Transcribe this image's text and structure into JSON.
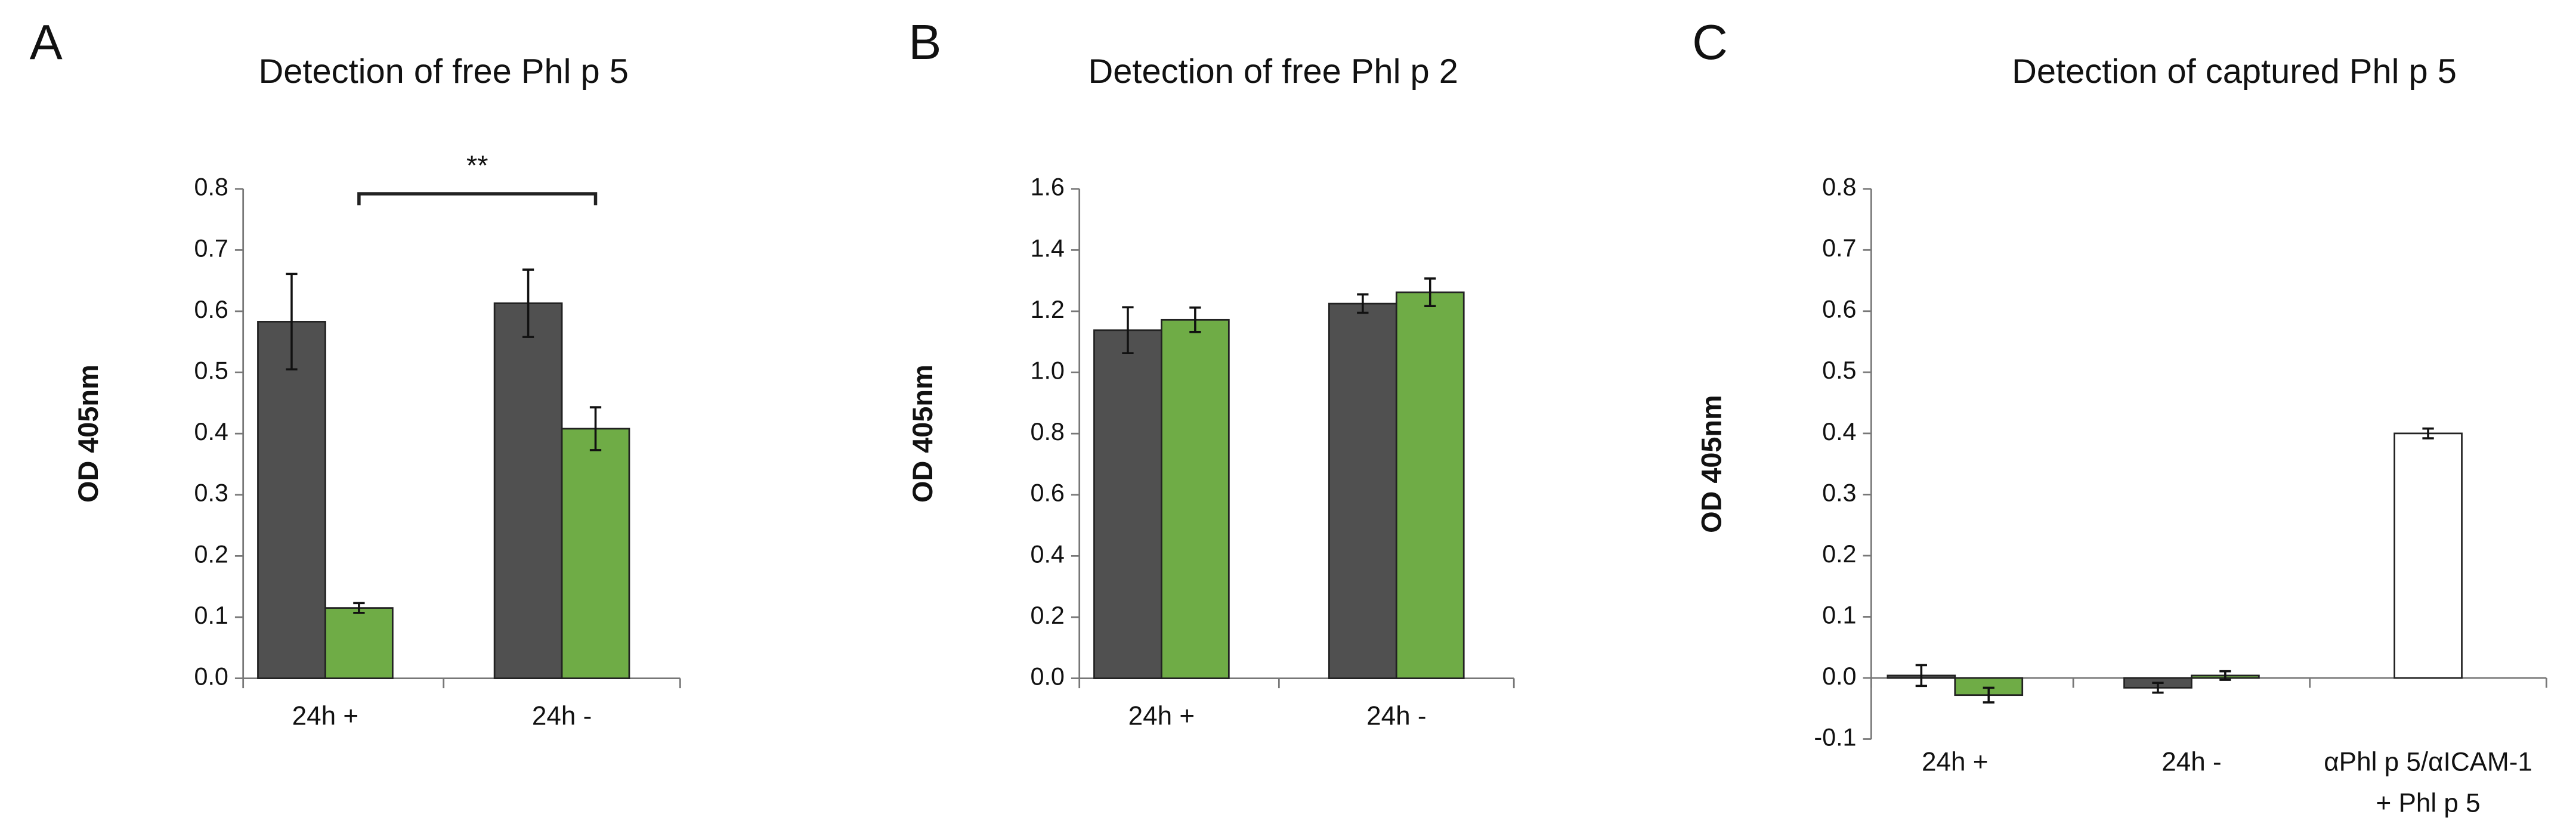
{
  "chart_data": [
    {
      "type": "bar",
      "panel": "A",
      "title": "Detection of free Phl p 5",
      "y_label": "OD 405nm",
      "categories": [
        "24h +",
        "24h -"
      ],
      "series": [
        {
          "color": "#505050",
          "values": [
            0.583,
            0.613
          ],
          "errors": [
            0.078,
            0.055
          ]
        },
        {
          "color": "#6fac46",
          "values": [
            0.115,
            0.408
          ],
          "errors": [
            0.008,
            0.035
          ]
        }
      ],
      "ylim": [
        0,
        0.8
      ],
      "yticks": [
        {
          "value": 0,
          "label": "0.0"
        },
        0.1,
        0.2,
        0.3,
        0.4,
        0.5,
        0.6,
        0.7,
        0.8
      ],
      "annotation": "**"
    },
    {
      "type": "bar",
      "panel": "B",
      "title": "Detection of free Phl p 2",
      "y_label": "OD 405nm",
      "categories": [
        "24h +",
        "24h -"
      ],
      "series": [
        {
          "color": "#505050",
          "values": [
            1.138,
            1.225
          ],
          "errors": [
            0.075,
            0.03
          ]
        },
        {
          "color": "#6fac46",
          "values": [
            1.172,
            1.262
          ],
          "errors": [
            0.04,
            0.045
          ]
        }
      ],
      "ylim": [
        0,
        1.6
      ],
      "yticks": [
        {
          "value": 0,
          "label": "0.0"
        },
        0.2,
        0.4,
        0.6,
        0.8,
        {
          "value": 1,
          "label": "1.0"
        },
        1.2,
        1.4,
        1.6
      ]
    },
    {
      "type": "bar",
      "panel": "C",
      "title": "Detection of captured Phl p 5",
      "y_label": "OD 405nm",
      "categories": [
        "24h +",
        "24h -",
        [
          "αPhl p 5/αICAM-1",
          "+ Phl p 5"
        ]
      ],
      "series": [
        {
          "color": "#505050",
          "values": [
            0.004,
            -0.016,
            null
          ],
          "errors": [
            0.017,
            0.008,
            null
          ]
        },
        {
          "color": "#6fac46",
          "values": [
            -0.028,
            0.004,
            null
          ],
          "errors": [
            0.012,
            0.007,
            null
          ]
        },
        {
          "color": "#ffffff",
          "values": [
            null,
            null,
            0.4
          ],
          "errors": [
            null,
            null,
            0.008
          ]
        }
      ],
      "ylim": [
        -0.1,
        0.8
      ],
      "yticks": [
        -0.1,
        {
          "value": 0,
          "label": "0.0"
        },
        0.1,
        0.2,
        0.3,
        0.4,
        0.5,
        0.6,
        0.7,
        0.8
      ]
    }
  ]
}
